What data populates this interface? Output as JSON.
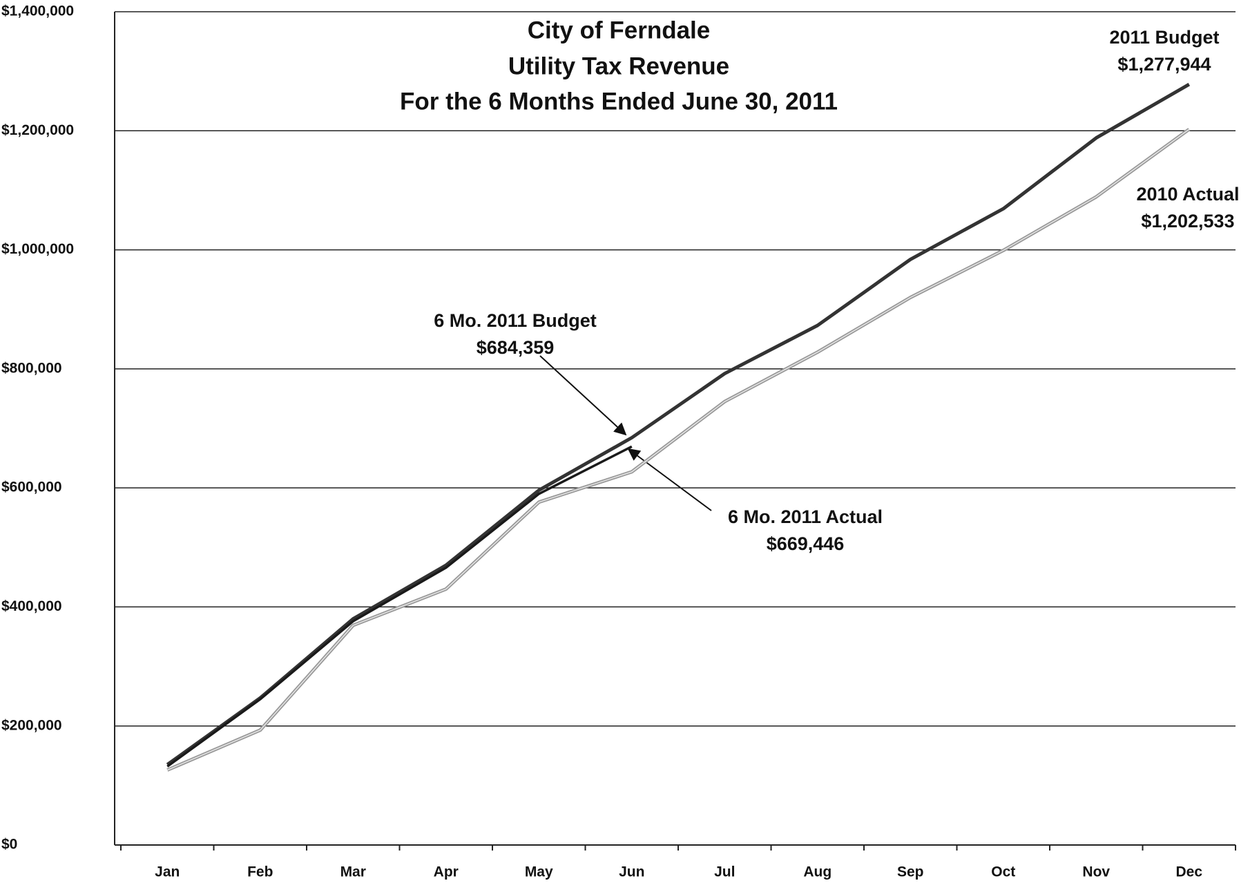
{
  "chart_data": {
    "type": "line",
    "title": [
      "City of Ferndale",
      "Utility Tax Revenue",
      "For the 6 Months Ended June 30, 2011"
    ],
    "categories": [
      "Jan",
      "Feb",
      "Mar",
      "Apr",
      "May",
      "Jun",
      "Jul",
      "Aug",
      "Sep",
      "Oct",
      "Nov",
      "Dec"
    ],
    "series": [
      {
        "name": "2011 Budget",
        "color": "#333333",
        "values": [
          135000,
          247000,
          380000,
          470000,
          596000,
          684359,
          792000,
          873000,
          984000,
          1069000,
          1188000,
          1277944
        ],
        "value_labels": [
          null,
          null,
          null,
          null,
          null,
          "$684,359",
          null,
          null,
          null,
          null,
          null,
          "$1,277,944"
        ]
      },
      {
        "name": "6 Mo. 2011 Actual",
        "color": "#1a1a1a",
        "values": [
          132000,
          245000,
          376000,
          466000,
          590000,
          669446,
          null,
          null,
          null,
          null,
          null,
          null
        ],
        "value_labels": [
          null,
          null,
          null,
          null,
          null,
          "$669,446",
          null,
          null,
          null,
          null,
          null,
          null
        ]
      },
      {
        "name": "2010 Actual",
        "color": "#999999",
        "values": [
          126000,
          193000,
          369000,
          430000,
          576000,
          627000,
          745000,
          828000,
          920000,
          999000,
          1089000,
          1202533
        ],
        "value_labels": [
          null,
          null,
          null,
          null,
          null,
          null,
          null,
          null,
          null,
          null,
          null,
          "$1,202,533"
        ]
      }
    ],
    "annotations": [
      "6 Mo. 2011 Budget"
    ],
    "ylim": [
      0,
      1400000
    ],
    "yticks": [
      {
        "value": 0,
        "label": "$0"
      },
      {
        "value": 200000,
        "label": "$200,000"
      },
      {
        "value": 400000,
        "label": "$400,000"
      },
      {
        "value": 600000,
        "label": "$600,000"
      },
      {
        "value": 800000,
        "label": "$800,000"
      },
      {
        "value": 1000000,
        "label": "$1,000,000"
      },
      {
        "value": 1200000,
        "label": "$1,200,000"
      },
      {
        "value": 1400000,
        "label": "$1,400,000"
      }
    ],
    "grid": true
  }
}
